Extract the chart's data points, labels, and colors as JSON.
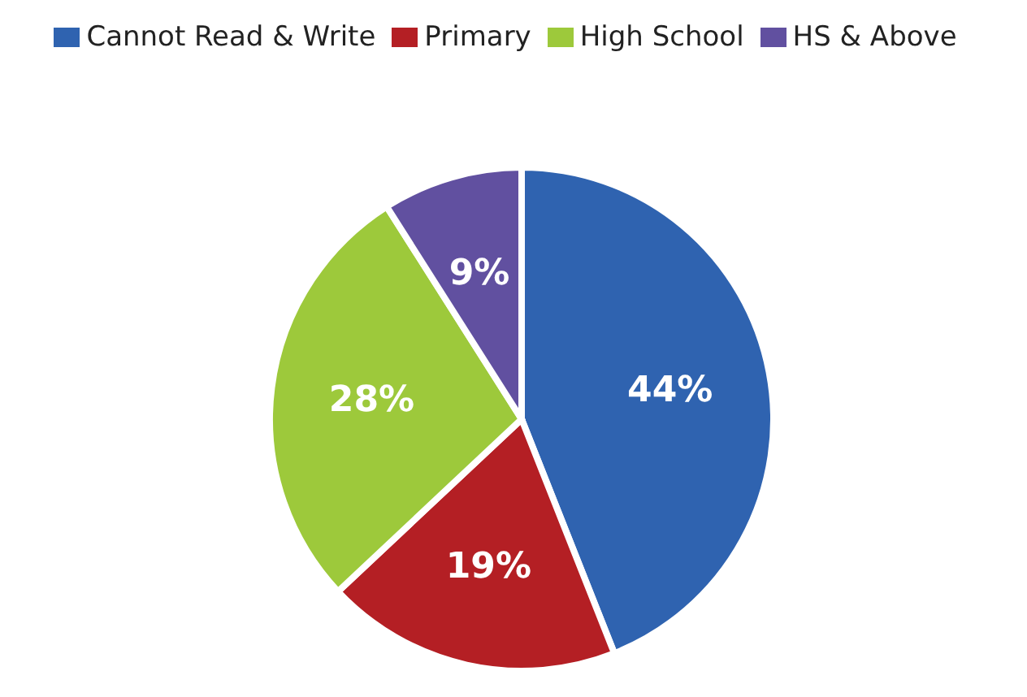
{
  "chart_data": {
    "type": "pie",
    "categories": [
      "Cannot Read & Write",
      "Primary",
      "High School",
      "HS & Above"
    ],
    "values": [
      44,
      19,
      28,
      9
    ],
    "value_labels": [
      "44%",
      "19%",
      "28%",
      "9%"
    ],
    "colors": [
      "#2f63b0",
      "#b41f24",
      "#9dc93b",
      "#6150a0"
    ],
    "legend": "top"
  }
}
